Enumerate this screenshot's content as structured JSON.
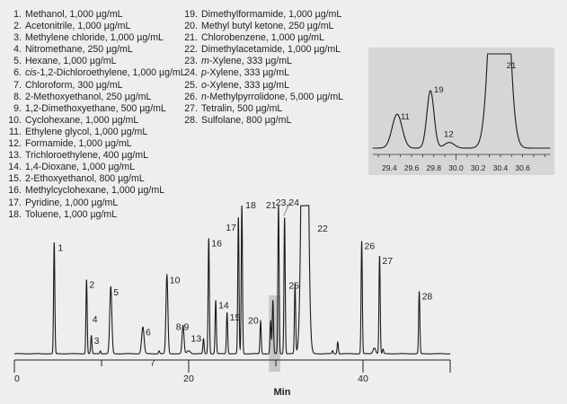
{
  "legend": {
    "left": [
      {
        "num": "1.",
        "italic": "",
        "text": "Methanol, 1,000 µg/mL"
      },
      {
        "num": "2.",
        "italic": "",
        "text": "Acetonitrile, 1,000 µg/mL"
      },
      {
        "num": "3.",
        "italic": "",
        "text": "Methylene chloride, 1,000 µg/mL"
      },
      {
        "num": "4.",
        "italic": "",
        "text": "Nitromethane, 250 µg/mL"
      },
      {
        "num": "5.",
        "italic": "",
        "text": "Hexane, 1,000 µg/mL"
      },
      {
        "num": "6.",
        "italic": "cis",
        "text": "-1,2-Dichloroethylene, 1,000 µg/mL"
      },
      {
        "num": "7.",
        "italic": "",
        "text": "Chloroform, 300 µg/mL"
      },
      {
        "num": "8.",
        "italic": "",
        "text": "2-Methoxyethanol, 250 µg/mL"
      },
      {
        "num": "9.",
        "italic": "",
        "text": "1,2-Dimethoxyethane, 500 µg/mL"
      },
      {
        "num": "10.",
        "italic": "",
        "text": "Cyclohexane, 1,000 µg/mL"
      },
      {
        "num": "11.",
        "italic": "",
        "text": "Ethylene glycol, 1,000 µg/mL"
      },
      {
        "num": "12.",
        "italic": "",
        "text": "Formamide, 1,000 µg/mL"
      },
      {
        "num": "13.",
        "italic": "",
        "text": "Trichloroethylene, 400 µg/mL"
      },
      {
        "num": "14.",
        "italic": "",
        "text": "1,4-Dioxane, 1,000 µg/mL"
      },
      {
        "num": "15.",
        "italic": "",
        "text": "2-Ethoxyethanol, 800 µg/mL"
      },
      {
        "num": "16.",
        "italic": "",
        "text": "Methylcyclohexane, 1,000 µg/mL"
      },
      {
        "num": "17.",
        "italic": "",
        "text": "Pyridine, 1,000 µg/mL"
      },
      {
        "num": "18.",
        "italic": "",
        "text": "Toluene, 1,000 µg/mL"
      }
    ],
    "right": [
      {
        "num": "19.",
        "italic": "",
        "text": "Dimethylformamide, 1,000 µg/mL"
      },
      {
        "num": "20.",
        "italic": "",
        "text": "Methyl butyl ketone, 250 µg/mL"
      },
      {
        "num": "21.",
        "italic": "",
        "text": "Chlorobenzene, 1,000 µg/mL"
      },
      {
        "num": "22.",
        "italic": "",
        "text": "Dimethylacetamide, 1,000 µg/mL"
      },
      {
        "num": "23.",
        "italic": "m",
        "text": "-Xylene, 333 µg/mL"
      },
      {
        "num": "24.",
        "italic": "p",
        "text": "-Xylene, 333 µg/mL"
      },
      {
        "num": "25.",
        "italic": "o",
        "text": "-Xylene, 333 µg/mL"
      },
      {
        "num": "26.",
        "italic": "n",
        "text": "-Methylpyrrolidone, 5,000 µg/mL"
      },
      {
        "num": "27.",
        "italic": "",
        "text": "Tetralin, 500 µg/mL"
      },
      {
        "num": "28.",
        "italic": "",
        "text": "Sulfolane, 800 µg/mL"
      }
    ]
  },
  "chart_data": [
    {
      "type": "line",
      "title": "",
      "xlabel": "Min",
      "ylabel": "",
      "xlim": [
        0,
        50
      ],
      "xticks_major": [
        0,
        10,
        20,
        30,
        40,
        50
      ],
      "xtick_labels": [
        "0",
        "20",
        "40"
      ],
      "y_units": "relative response (% of full scale)",
      "grid": false,
      "highlight_window_min": [
        29.2,
        30.5
      ],
      "colors": {
        "trace": "#1a1a1a",
        "highlight": "#c8c8c8",
        "background": "#eeeeee"
      },
      "peaks": [
        {
          "label": "1",
          "rt": 4.57,
          "height": 75
        },
        {
          "label": "2",
          "rt": 8.28,
          "height": 50
        },
        {
          "label": "3",
          "rt": 8.83,
          "height": 12
        },
        {
          "label": "",
          "rt": 9.86,
          "height": 2
        },
        {
          "label": "4",
          "rt": 11.0,
          "height": 0
        },
        {
          "label": "5",
          "rt": 11.06,
          "height": 45,
          "width": 0.12
        },
        {
          "label": "6",
          "rt": 14.74,
          "height": 18,
          "width": 0.14
        },
        {
          "label": "7",
          "rt": 16.6,
          "height": 2
        },
        {
          "label": "10",
          "rt": 17.5,
          "height": 53,
          "width": 0.11
        },
        {
          "label": "8,9",
          "rt": 19.35,
          "height": 19,
          "width": 0.11
        },
        {
          "label": "",
          "rt": 20.0,
          "height": 2,
          "width": 0.2
        },
        {
          "label": "13",
          "rt": 21.7,
          "height": 10
        },
        {
          "label": "16",
          "rt": 22.3,
          "height": 78
        },
        {
          "label": "14",
          "rt": 23.1,
          "height": 36
        },
        {
          "label": "15",
          "rt": 24.4,
          "height": 28
        },
        {
          "label": "17",
          "rt": 25.7,
          "height": 92
        },
        {
          "label": "18",
          "rt": 26.1,
          "height": 100
        },
        {
          "label": "20",
          "rt": 28.25,
          "height": 22
        },
        {
          "label": "",
          "rt": 29.4,
          "height": 22
        },
        {
          "label": "",
          "rt": 29.66,
          "height": 36
        },
        {
          "label": "21",
          "rt": 30.3,
          "height": 100
        },
        {
          "label": "23,24",
          "rt": 31.0,
          "height": 92
        },
        {
          "label": "25",
          "rt": 32.2,
          "height": 47
        },
        {
          "label": "22",
          "rt": 33.32,
          "height": 100,
          "offscale": true
        },
        {
          "label": "",
          "rt": 36.5,
          "height": 2
        },
        {
          "label": "",
          "rt": 37.1,
          "height": 8
        },
        {
          "label": "26",
          "rt": 39.85,
          "height": 76
        },
        {
          "label": "",
          "rt": 41.3,
          "height": 4,
          "width": 0.15
        },
        {
          "label": "27",
          "rt": 41.9,
          "height": 66
        },
        {
          "label": "",
          "rt": 42.3,
          "height": 3
        },
        {
          "label": "28",
          "rt": 46.45,
          "height": 42
        }
      ]
    },
    {
      "type": "line",
      "title": "",
      "xlabel": "",
      "xlim": [
        29.25,
        30.85
      ],
      "xticks_major": [
        29.4,
        29.6,
        29.8,
        30.0,
        30.2,
        30.4,
        30.6
      ],
      "xtick_labels": [
        "29.4",
        "29.6",
        "29.8",
        "30.0",
        "30.2",
        "30.4",
        "30.6"
      ],
      "minor_tick_step": 0.1,
      "grid": false,
      "colors": {
        "trace": "#1a1a1a",
        "background": "#d6d6d6"
      },
      "peaks": [
        {
          "label": "11",
          "rt": 29.47,
          "height": 36,
          "width": 0.045
        },
        {
          "label": "19",
          "rt": 29.77,
          "height": 61,
          "width": 0.032
        },
        {
          "label": "12",
          "rt": 29.94,
          "height": 6,
          "width": 0.045
        },
        {
          "label": "21",
          "rt": 30.39,
          "height": 100,
          "offscale": true,
          "width": 0.04
        }
      ]
    }
  ]
}
